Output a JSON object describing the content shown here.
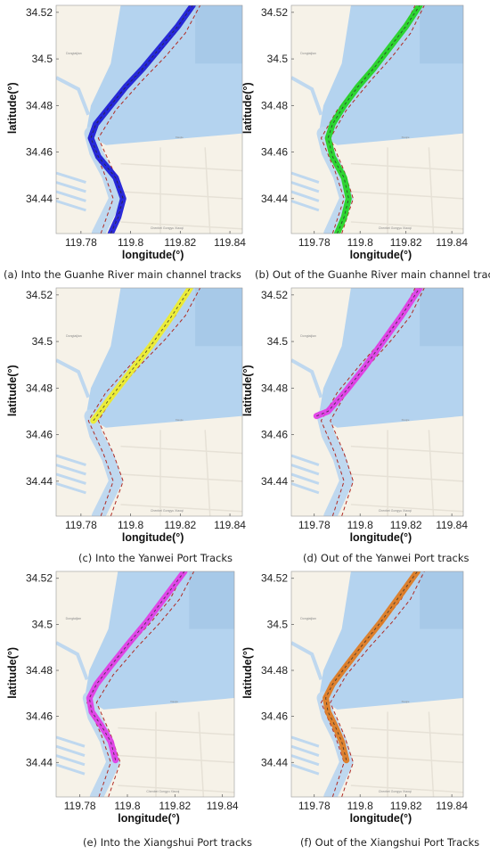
{
  "figure": {
    "captions": [
      "(a)   Into the Guanhe River main channel tracks",
      "(b)  Out of the Guanhe River main channel tracks",
      "(c)   Into the Yanwei Port Tracks",
      "(d)   Out of the Yanwei Port tracks",
      "(e)  Into the Xiangshui Port tracks",
      "(f)   Out of the Xiangshui Port Tracks"
    ]
  },
  "colors": {
    "sea": "#b4d3ef",
    "land": "#f6f2e8",
    "river": "#bfd8ef",
    "road": "#e6e1d6",
    "dash": "#b02a22",
    "panel_a": "#1a1ad6",
    "panel_b": "#22d422",
    "panel_c": "#f0ee2a",
    "panel_d": "#e23be6",
    "panel_e": "#e23be6",
    "panel_f": "#e07a1e"
  },
  "map_labels": {
    "town": "Chenbei Gongyu Xiaoqi",
    "small_1": "Dongtaijian",
    "small_2": "Xiaojie"
  },
  "chart_data": [
    {
      "type": "line",
      "panel": "a",
      "caption": "(a)   Into the Guanhe River main channel tracks",
      "xlabel": "longitude(°)",
      "ylabel": "latitude(°)",
      "xlim": [
        119.77,
        119.845
      ],
      "ylim": [
        34.425,
        34.523
      ],
      "xticks": [
        "119.78",
        "119.8",
        "119.82",
        "119.84"
      ],
      "yticks": [
        "34.44",
        "34.46",
        "34.48",
        "34.5",
        "34.52"
      ],
      "grid": false,
      "series": [
        {
          "role": "tracks",
          "x": [
            119.792,
            119.795,
            119.797,
            119.794,
            119.787,
            119.784,
            119.786,
            119.792,
            119.798,
            119.805,
            119.812,
            119.819,
            119.825
          ],
          "y": [
            34.425,
            34.432,
            34.44,
            34.449,
            34.458,
            34.466,
            34.472,
            34.48,
            34.488,
            34.496,
            34.505,
            34.514,
            34.523
          ]
        }
      ]
    },
    {
      "type": "line",
      "panel": "b",
      "caption": "(b)  Out of the Guanhe River main channel tracks",
      "xlabel": "longitude(°)",
      "ylabel": "latitude(°)",
      "xlim": [
        119.77,
        119.845
      ],
      "ylim": [
        34.425,
        34.523
      ],
      "xticks": [
        "119.78",
        "119.8",
        "119.82",
        "119.84"
      ],
      "yticks": [
        "34.44",
        "34.46",
        "34.48",
        "34.5",
        "34.52"
      ],
      "grid": false,
      "series": [
        {
          "role": "tracks",
          "x": [
            119.79,
            119.793,
            119.795,
            119.793,
            119.788,
            119.786,
            119.788,
            119.793,
            119.799,
            119.806,
            119.813,
            119.82,
            119.826
          ],
          "y": [
            34.425,
            34.432,
            34.44,
            34.449,
            34.458,
            34.466,
            34.472,
            34.48,
            34.488,
            34.496,
            34.505,
            34.514,
            34.523
          ]
        }
      ]
    },
    {
      "type": "line",
      "panel": "c",
      "caption": "(c)   Into the Yanwei Port Tracks",
      "xlabel": "longitude(°)",
      "ylabel": "latitude(°)",
      "xlim": [
        119.77,
        119.845
      ],
      "ylim": [
        34.425,
        34.523
      ],
      "xticks": [
        "119.78",
        "119.8",
        "119.82",
        "119.84"
      ],
      "yticks": [
        "34.44",
        "34.46",
        "34.48",
        "34.5",
        "34.52"
      ],
      "grid": false,
      "series": [
        {
          "role": "tracks",
          "x": [
            119.785,
            119.792,
            119.8,
            119.808,
            119.816,
            119.824
          ],
          "y": [
            34.466,
            34.476,
            34.487,
            34.498,
            34.51,
            34.523
          ]
        }
      ]
    },
    {
      "type": "line",
      "panel": "d",
      "caption": "(d)   Out of the Yanwei Port tracks",
      "xlabel": "longitude(°)",
      "ylabel": "latitude(°)",
      "xlim": [
        119.77,
        119.845
      ],
      "ylim": [
        34.425,
        34.523
      ],
      "xticks": [
        "119.78",
        "119.8",
        "119.82",
        "119.84"
      ],
      "yticks": [
        "34.44",
        "34.46",
        "34.48",
        "34.5",
        "34.52"
      ],
      "grid": false,
      "series": [
        {
          "role": "tracks",
          "x": [
            119.781,
            119.786,
            119.794,
            119.802,
            119.81,
            119.818,
            119.826
          ],
          "y": [
            34.468,
            34.47,
            34.479,
            34.489,
            34.5,
            34.511,
            34.523
          ]
        }
      ]
    },
    {
      "type": "line",
      "panel": "e",
      "caption": "(e)  Into the Xiangshui Port tracks",
      "xlabel": "longitude(°)",
      "ylabel": "latitude(°)",
      "xlim": [
        119.77,
        119.845
      ],
      "ylim": [
        34.425,
        34.523
      ],
      "xticks": [
        "119.78",
        "119.8",
        "119.82",
        "119.84"
      ],
      "yticks": [
        "34.44",
        "34.46",
        "34.48",
        "34.5",
        "34.52"
      ],
      "grid": false,
      "series": [
        {
          "role": "tracks",
          "x": [
            119.795,
            119.793,
            119.789,
            119.785,
            119.784,
            119.787,
            119.793,
            119.8,
            119.808,
            119.816,
            119.824
          ],
          "y": [
            34.441,
            34.449,
            34.456,
            34.462,
            34.468,
            34.474,
            34.482,
            34.491,
            34.501,
            34.512,
            34.523
          ]
        }
      ]
    },
    {
      "type": "line",
      "panel": "f",
      "caption": "(f)   Out of the Xiangshui Port Tracks",
      "xlabel": "longitude(°)",
      "ylabel": "latitude(°)",
      "xlim": [
        119.77,
        119.845
      ],
      "ylim": [
        34.425,
        34.523
      ],
      "xticks": [
        "119.78",
        "119.8",
        "119.82",
        "119.84"
      ],
      "yticks": [
        "34.44",
        "34.46",
        "34.48",
        "34.5",
        "34.52"
      ],
      "grid": false,
      "series": [
        {
          "role": "tracks",
          "x": [
            119.794,
            119.792,
            119.789,
            119.786,
            119.785,
            119.788,
            119.794,
            119.801,
            119.809,
            119.817,
            119.825
          ],
          "y": [
            34.441,
            34.449,
            34.456,
            34.462,
            34.468,
            34.474,
            34.482,
            34.491,
            34.501,
            34.512,
            34.523
          ]
        }
      ]
    }
  ]
}
